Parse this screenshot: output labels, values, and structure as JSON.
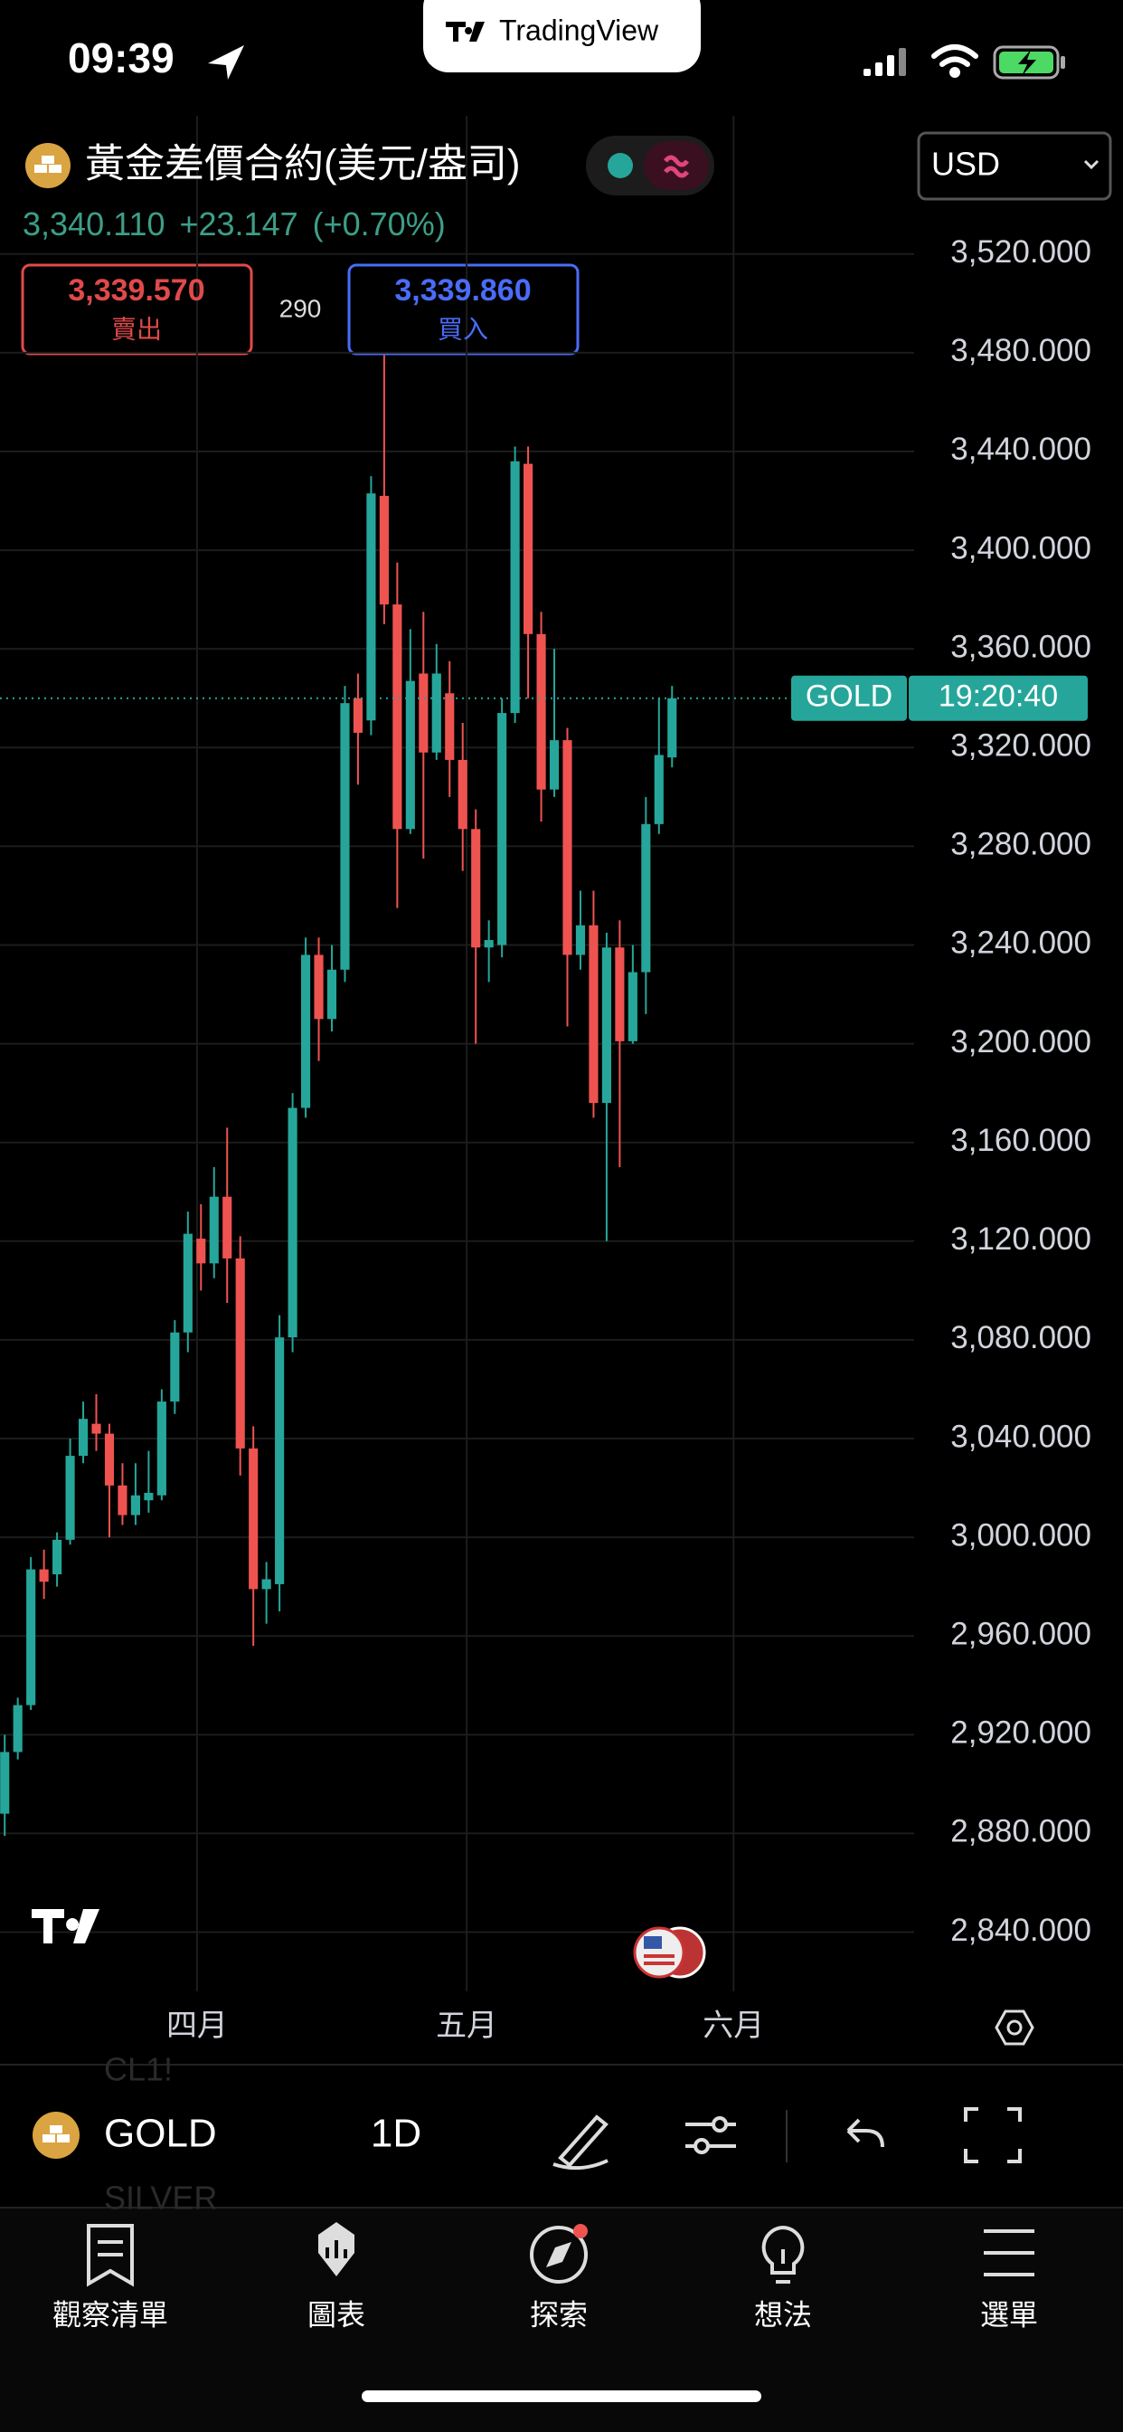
{
  "status_bar": {
    "time": "09:39"
  },
  "brand": "TradingView",
  "symbol": {
    "name": "黃金差價合約(美元/盎司)",
    "price": "3,340.110",
    "change": "+23.147",
    "change_pct": "(+0.70%)"
  },
  "quote": {
    "sell_price": "3,339.570",
    "sell_label": "賣出",
    "spread": "290",
    "buy_price": "3,339.860",
    "buy_label": "買入"
  },
  "currency": "USD",
  "chart_data": {
    "type": "candlestick",
    "categories": [
      null,
      null,
      null,
      null,
      null,
      null,
      null,
      null,
      null,
      null,
      null,
      null,
      null,
      null,
      null,
      null,
      null,
      null,
      null,
      null,
      null,
      null,
      null,
      null,
      null,
      null,
      null,
      null,
      null,
      null,
      null,
      null,
      null,
      null,
      null,
      null,
      null,
      null,
      null,
      null,
      null,
      null,
      null,
      null,
      null,
      null,
      null,
      null,
      null,
      null,
      null,
      null
    ],
    "open": [
      2888,
      2913,
      2932,
      2987,
      2985,
      2999,
      3033,
      3046,
      3042,
      3021,
      3009,
      3015,
      3017,
      3055,
      3083,
      3121,
      3111,
      3138,
      3113,
      3036,
      2979,
      2981,
      3081,
      3174,
      3236,
      3210,
      3230,
      3340,
      3331,
      3422,
      3378,
      3287,
      3350,
      3318,
      3342,
      3315,
      3287,
      3239,
      3240,
      3334,
      3435,
      3366,
      3303,
      3323,
      3236,
      3248,
      3176,
      3239,
      3201,
      3229,
      3289,
      3316
    ],
    "high": [
      2920,
      2935,
      2992,
      2995,
      3002,
      3040,
      3055,
      3058,
      3046,
      3030,
      3030,
      3035,
      3060,
      3088,
      3132,
      3135,
      3150,
      3166,
      3122,
      3045,
      2990,
      3090,
      3180,
      3243,
      3243,
      3240,
      3345,
      3350,
      3430,
      3479,
      3395,
      3368,
      3375,
      3362,
      3355,
      3330,
      3295,
      3250,
      3340,
      3442,
      3442,
      3375,
      3360,
      3328,
      3262,
      3262,
      3245,
      3250,
      3240,
      3300,
      3340,
      3345
    ],
    "low": [
      2879,
      2910,
      2930,
      2975,
      2980,
      2997,
      3030,
      3035,
      3000,
      3005,
      3005,
      3010,
      3015,
      3050,
      3075,
      3100,
      3105,
      3095,
      3025,
      2956,
      2965,
      2970,
      3075,
      3170,
      3193,
      3205,
      3225,
      3305,
      3325,
      3370,
      3255,
      3285,
      3275,
      3315,
      3300,
      3270,
      3200,
      3225,
      3235,
      3330,
      3340,
      3290,
      3300,
      3207,
      3230,
      3170,
      3120,
      3150,
      3200,
      3212,
      3285,
      3312
    ],
    "close": [
      2913,
      2932,
      2987,
      2982,
      2999,
      3033,
      3048,
      3042,
      3021,
      3009,
      3017,
      3018,
      3055,
      3083,
      3123,
      3111,
      3138,
      3113,
      3036,
      2979,
      2983,
      3081,
      3174,
      3236,
      3210,
      3230,
      3338,
      3326,
      3423,
      3378,
      3287,
      3347,
      3318,
      3350,
      3315,
      3287,
      3239,
      3242,
      3334,
      3436,
      3366,
      3303,
      3323,
      3236,
      3248,
      3176,
      3239,
      3201,
      3229,
      3289,
      3317,
      3340
    ],
    "up_color": "#26a69a",
    "down_color": "#ef5350",
    "xlim": [
      -0.36,
      69.5
    ],
    "xticks": [
      {
        "value": 14.7,
        "label": "四月"
      },
      {
        "value": 35.3,
        "label": "五月"
      },
      {
        "value": 55.7,
        "label": "六月"
      }
    ],
    "ylim": [
      2816,
      3576
    ],
    "yticks": [
      {
        "value": 3520,
        "label": "3,520.000"
      },
      {
        "value": 3480,
        "label": "3,480.000"
      },
      {
        "value": 3440,
        "label": "3,440.000"
      },
      {
        "value": 3400,
        "label": "3,400.000"
      },
      {
        "value": 3360,
        "label": "3,360.000"
      },
      {
        "value": 3320,
        "label": "3,320.000"
      },
      {
        "value": 3280,
        "label": "3,280.000"
      },
      {
        "value": 3240,
        "label": "3,240.000"
      },
      {
        "value": 3200,
        "label": "3,200.000"
      },
      {
        "value": 3160,
        "label": "3,160.000"
      },
      {
        "value": 3120,
        "label": "3,120.000"
      },
      {
        "value": 3080,
        "label": "3,080.000"
      },
      {
        "value": 3040,
        "label": "3,040.000"
      },
      {
        "value": 3000,
        "label": "3,000.000"
      },
      {
        "value": 2960,
        "label": "2,960.000"
      },
      {
        "value": 2920,
        "label": "2,920.000"
      },
      {
        "value": 2880,
        "label": "2,880.000"
      },
      {
        "value": 2840,
        "label": "2,840.000"
      }
    ],
    "grid": true,
    "price_label": {
      "symbol": "GOLD",
      "countdown": "19:20:40"
    }
  },
  "toolbar": {
    "symbol": "GOLD",
    "interval": "1D"
  },
  "watchlist_ghost": [
    "CL1!",
    "SILVER"
  ],
  "tabs": [
    "觀察清單",
    "圖表",
    "探索",
    "想法",
    "選單"
  ]
}
